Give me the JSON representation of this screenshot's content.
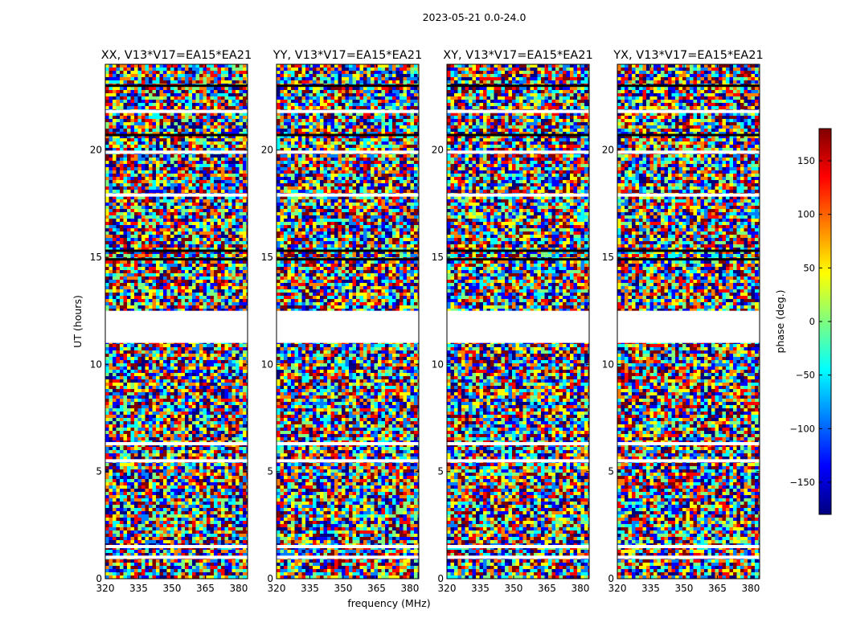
{
  "suptitle": "2023-05-21 0.0-24.0",
  "chart_data": {
    "type": "heatmap",
    "panels": [
      {
        "title": "XX, V13*V17=EA15*EA21"
      },
      {
        "title": "YY, V13*V17=EA15*EA21"
      },
      {
        "title": "XY, V13*V17=EA15*EA21"
      },
      {
        "title": "YX, V13*V17=EA15*EA21"
      }
    ],
    "xlabel": "frequency (MHz)",
    "ylabel": "UT (hours)",
    "xlim": [
      320,
      384
    ],
    "ylim": [
      0,
      24
    ],
    "xticks": [
      "320",
      "335",
      "350",
      "365",
      "380"
    ],
    "xtick_values": [
      320,
      335,
      350,
      365,
      380
    ],
    "yticks": [
      "0",
      "5",
      "10",
      "15",
      "20"
    ],
    "ytick_values": [
      0,
      5,
      10,
      15,
      20
    ],
    "colorbar": {
      "label": "phase (deg.)",
      "range": [
        -180,
        180
      ],
      "ticks": [
        "150",
        "100",
        "50",
        "0",
        "−50",
        "−100",
        "−150"
      ],
      "tick_values": [
        150,
        100,
        50,
        0,
        -50,
        -100,
        -150
      ],
      "colormap": "jet"
    },
    "values_note": "",
    "data_gaps_hours": [
      [
        11.0,
        12.5
      ]
    ]
  },
  "colors": {
    "jet": [
      "#00007f",
      "#0000ff",
      "#007fff",
      "#00ffff",
      "#7fff7f",
      "#ffff00",
      "#ff7f00",
      "#ff0000",
      "#7f0000"
    ]
  }
}
